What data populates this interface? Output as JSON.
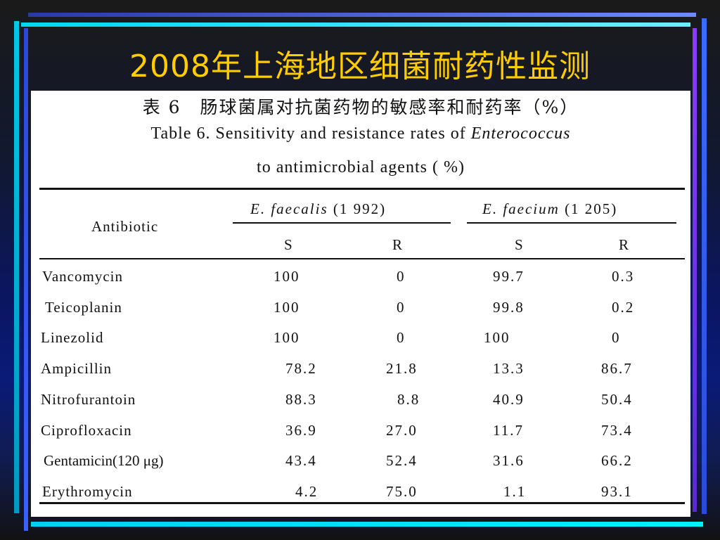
{
  "slide": {
    "title": "2008年上海地区细菌耐药性监测"
  },
  "table": {
    "caption_cn": "表 6　肠球菌属对抗菌药物的敏感率和耐药率（%）",
    "caption_en_line1_prefix": "Table 6.  Sensitivity and resistance rates of ",
    "caption_en_line1_italic": "Enterococcus",
    "caption_en_line2": "to antimicrobial agents ( %)",
    "header": {
      "antibiotic": "Antibiotic",
      "group1_italic": "E.  faecalis",
      "group1_n": "(1 992)",
      "group2_italic": "E.  faecium",
      "group2_n": "(1 205)",
      "s1": "S",
      "r1": "R",
      "s2": "S",
      "r2": "R"
    },
    "rows": [
      {
        "antibiotic": "Vancomycin",
        "fs": "100",
        "fr": "0",
        "ms": "99.7",
        "mr": "0.3"
      },
      {
        "antibiotic": "Teicoplanin",
        "fs": "100",
        "fr": "0",
        "ms": "99.8",
        "mr": "0.2"
      },
      {
        "antibiotic": "Linezolid",
        "fs": "100",
        "fr": "0",
        "ms": "100",
        "mr": "0"
      },
      {
        "antibiotic": "Ampicillin",
        "fs": "78.2",
        "fr": "21.8",
        "ms": "13.3",
        "mr": "86.7"
      },
      {
        "antibiotic": "Nitrofurantoin",
        "fs": "88.3",
        "fr": "8.8",
        "ms": "40.9",
        "mr": "50.4"
      },
      {
        "antibiotic": "Ciprofloxacin",
        "fs": "36.9",
        "fr": "27.0",
        "ms": "11.7",
        "mr": "73.4"
      },
      {
        "antibiotic": "Gentamicin(120 μg)",
        "fs": "43.4",
        "fr": "52.4",
        "ms": "31.6",
        "mr": "66.2"
      },
      {
        "antibiotic": "Erythromycin",
        "fs": "4.2",
        "fr": "75.0",
        "ms": "1.1",
        "mr": "93.1"
      }
    ]
  }
}
